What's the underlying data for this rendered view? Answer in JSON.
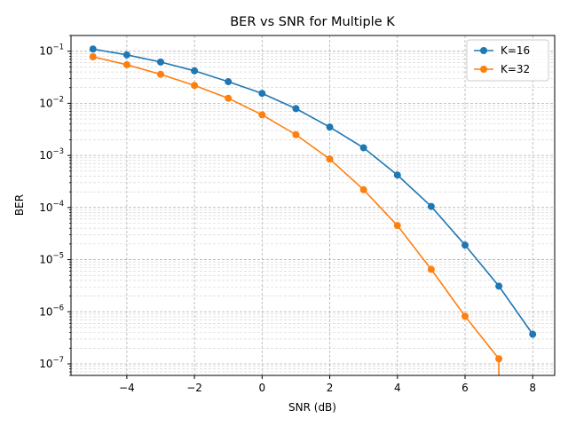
{
  "chart_data": {
    "type": "line",
    "title": "BER vs SNR for Multiple K",
    "xlabel": "SNR (dB)",
    "ylabel": "BER",
    "xlim": [
      -5.65,
      8.65
    ],
    "ylim": [
      6e-08,
      0.2
    ],
    "yscale": "log",
    "xticks": [
      -4,
      -2,
      0,
      2,
      4,
      6,
      8
    ],
    "xtick_labels": [
      "−4",
      "−2",
      "0",
      "2",
      "4",
      "6",
      "8"
    ],
    "ytick_exponents": [
      -7,
      -6,
      -5,
      -4,
      -3,
      -2,
      -1
    ],
    "ytick_labels": [
      "10",
      "10",
      "10",
      "10",
      "10",
      "10",
      "10"
    ],
    "ytick_label_exponents": [
      "−7",
      "−6",
      "−5",
      "−4",
      "−3",
      "−2",
      "−1"
    ],
    "grid": "both (major and minor), dashed",
    "legend": "upper right",
    "series": [
      {
        "name": "K=16",
        "color": "#1f77b4",
        "marker": "circle",
        "x": [
          -5,
          -4,
          -3,
          -2,
          -1,
          0,
          1,
          2,
          3,
          4,
          5,
          6,
          7,
          8
        ],
        "y": [
          0.11,
          0.085,
          0.062,
          0.042,
          0.026,
          0.0155,
          0.0079,
          0.0035,
          0.0014,
          0.00042,
          0.000105,
          1.9e-05,
          3.1e-06,
          3.7e-07
        ]
      },
      {
        "name": "K=32",
        "color": "#ff7f0e",
        "marker": "circle",
        "x": [
          -5,
          -4,
          -3,
          -2,
          -1,
          0,
          1,
          2,
          3,
          4,
          5,
          6,
          7
        ],
        "y": [
          0.078,
          0.055,
          0.036,
          0.022,
          0.0125,
          0.006,
          0.0025,
          0.00085,
          0.00022,
          4.5e-05,
          6.5e-06,
          8.2e-07,
          1.25e-07
        ]
      }
    ]
  }
}
